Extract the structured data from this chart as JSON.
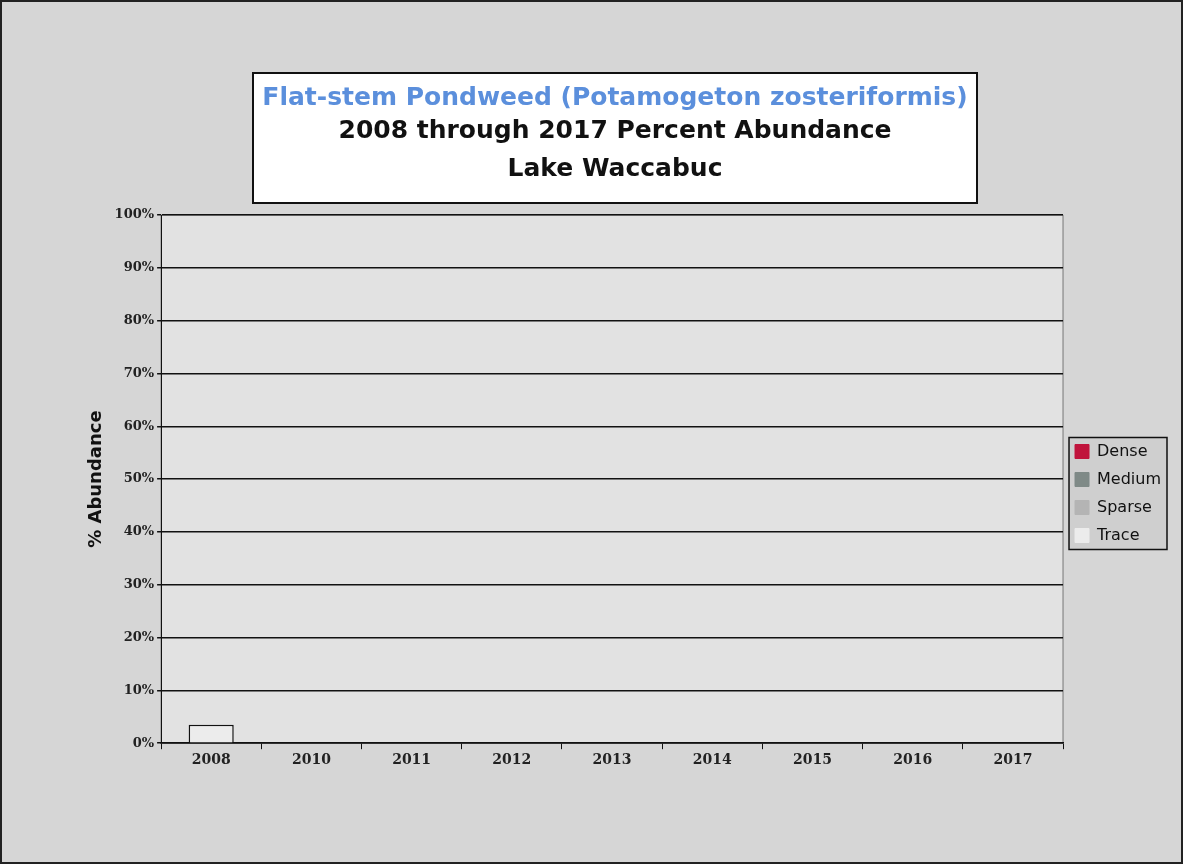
{
  "chart_data": {
    "type": "bar",
    "title": "Flat-stem Pondweed (Potamogeton zosteriformis)",
    "subtitle": "2008 through 2017 Percent Abundance\nLake Waccabuc",
    "ylabel": "% Abundance",
    "categories": [
      "2008",
      "2010",
      "2011",
      "2012",
      "2013",
      "2014",
      "2015",
      "2016",
      "2017"
    ],
    "stacked": true,
    "series": [
      {
        "name": "Trace",
        "color": "#ececec",
        "values": [
          3.5,
          0,
          0,
          0,
          0,
          0,
          0,
          0,
          0
        ]
      },
      {
        "name": "Sparse",
        "color": "#b4b4b4",
        "values": [
          0,
          0,
          0,
          0,
          0,
          0,
          0,
          0,
          0
        ]
      },
      {
        "name": "Medium",
        "color": "#7f8a87",
        "values": [
          0,
          0,
          0,
          0,
          0,
          0,
          0,
          0,
          0
        ]
      },
      {
        "name": "Dense",
        "color": "#c0143c",
        "values": [
          0,
          0,
          0,
          0,
          0,
          0,
          0,
          0,
          0
        ]
      }
    ],
    "ylim": [
      0,
      100
    ],
    "yticks": [
      {
        "value": 0,
        "label": "0%"
      },
      {
        "value": 10,
        "label": "10%"
      },
      {
        "value": 20,
        "label": "20%"
      },
      {
        "value": 30,
        "label": "30%"
      },
      {
        "value": 40,
        "label": "40%"
      },
      {
        "value": 50,
        "label": "50%"
      },
      {
        "value": 60,
        "label": "60%"
      },
      {
        "value": 70,
        "label": "70%"
      },
      {
        "value": 80,
        "label": "80%"
      },
      {
        "value": 90,
        "label": "90%"
      },
      {
        "value": 100,
        "label": "100%"
      }
    ],
    "grid": "y",
    "legend": "right"
  }
}
